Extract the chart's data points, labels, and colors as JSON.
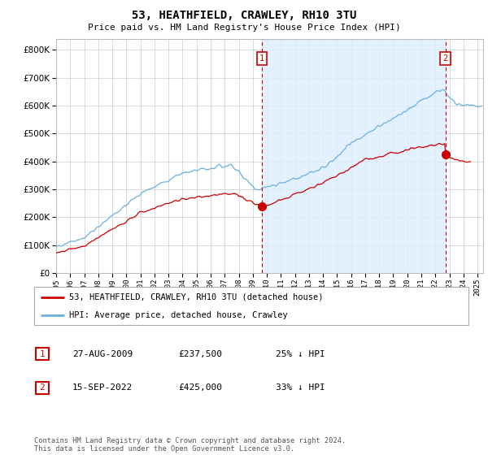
{
  "title": "53, HEATHFIELD, CRAWLEY, RH10 3TU",
  "subtitle": "Price paid vs. HM Land Registry's House Price Index (HPI)",
  "ytick_values": [
    0,
    100000,
    200000,
    300000,
    400000,
    500000,
    600000,
    700000,
    800000
  ],
  "ylim": [
    0,
    840000
  ],
  "xlim_start": 1995.0,
  "xlim_end": 2025.4,
  "hpi_color": "#6ab0de",
  "hpi_fill_color": "#ddeeff",
  "price_color": "#cc0000",
  "dashed_line_color": "#cc0000",
  "marker1_year": 2009.65,
  "marker1_price": 237500,
  "marker2_year": 2022.71,
  "marker2_price": 425000,
  "legend_label_red": "53, HEATHFIELD, CRAWLEY, RH10 3TU (detached house)",
  "legend_label_blue": "HPI: Average price, detached house, Crawley",
  "annotation1_num": "1",
  "annotation1_date": "27-AUG-2009",
  "annotation1_price": "£237,500",
  "annotation1_hpi": "25% ↓ HPI",
  "annotation2_num": "2",
  "annotation2_date": "15-SEP-2022",
  "annotation2_price": "£425,000",
  "annotation2_hpi": "33% ↓ HPI",
  "footer": "Contains HM Land Registry data © Crown copyright and database right 2024.\nThis data is licensed under the Open Government Licence v3.0.",
  "background_color": "#ffffff",
  "plot_bg_color": "#ffffff",
  "grid_color": "#cccccc"
}
